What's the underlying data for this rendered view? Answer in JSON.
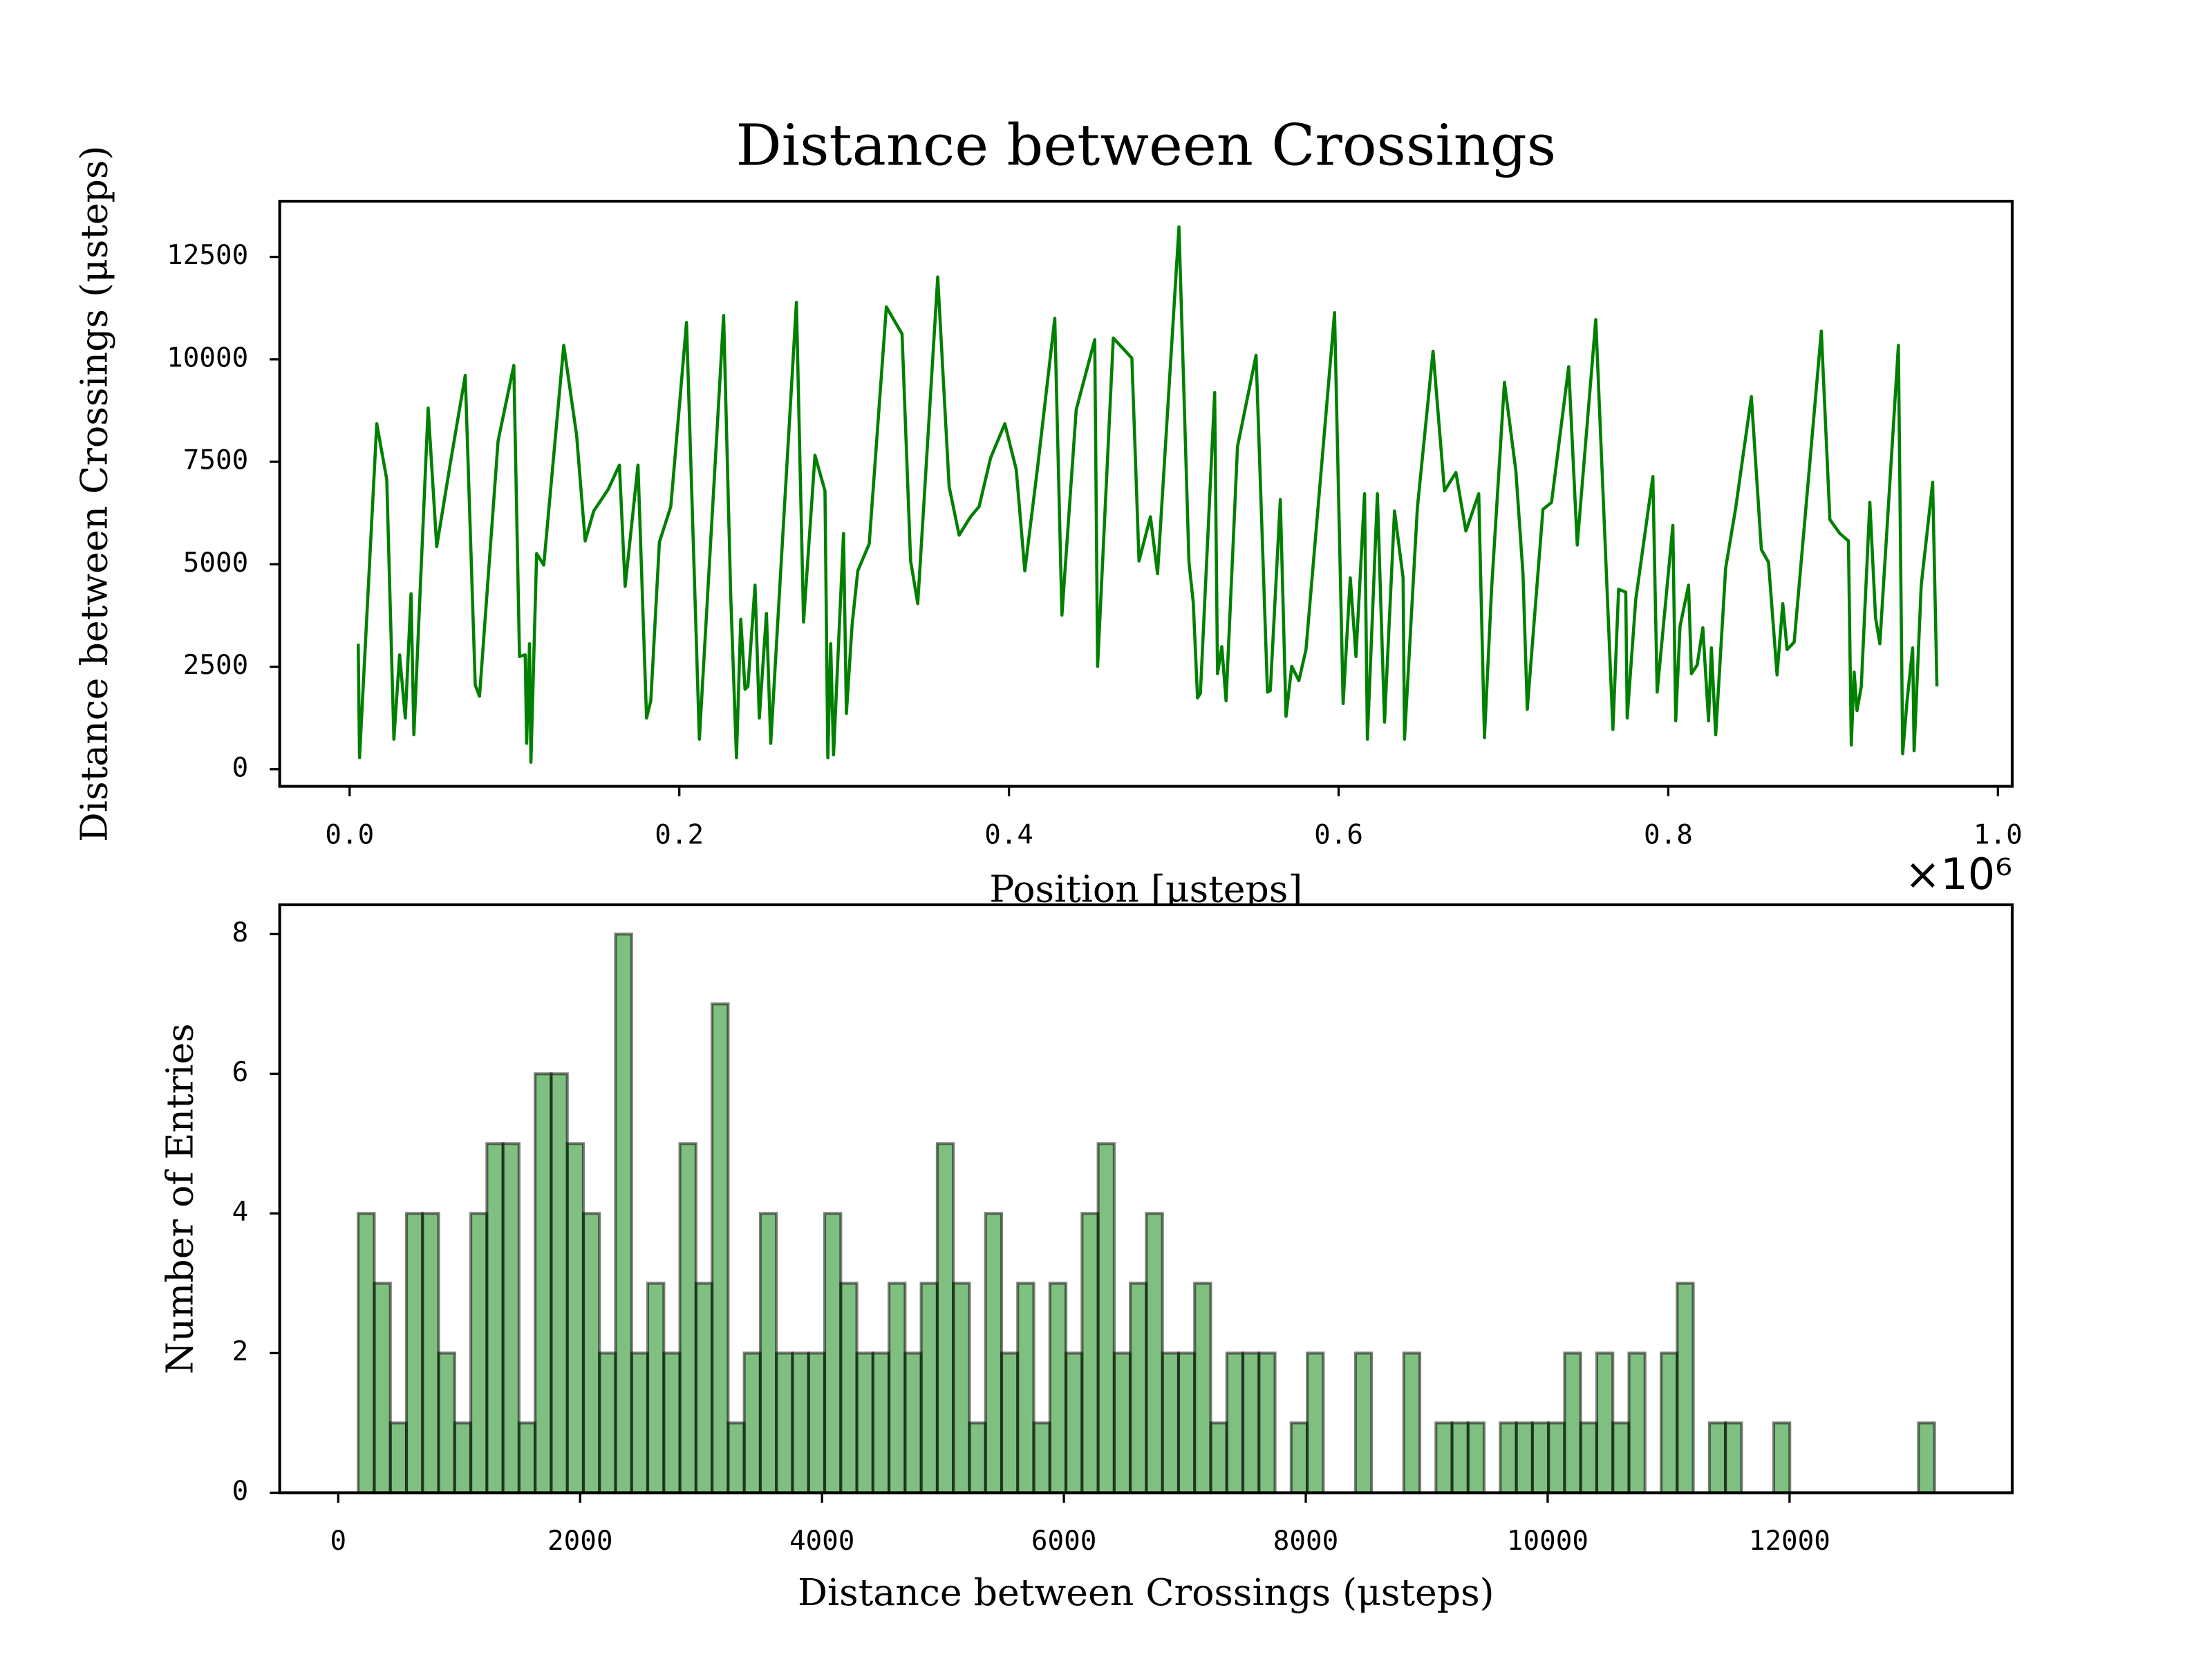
{
  "chart_data": [
    {
      "type": "line",
      "title": "Distance between Crossings",
      "xlabel": "Position [μsteps]",
      "ylabel": "Distance between Crossings (μsteps)",
      "x_offset_label": "×10⁶",
      "color": "#008000",
      "xlim": [
        -42424,
        1008658
      ],
      "ylim": [
        -418,
        13858
      ],
      "xticks": [
        {
          "value": 0,
          "label": "0.0"
        },
        {
          "value": 200000,
          "label": "0.2"
        },
        {
          "value": 400000,
          "label": "0.4"
        },
        {
          "value": 600000,
          "label": "0.6"
        },
        {
          "value": 800000,
          "label": "0.8"
        },
        {
          "value": 1000000,
          "label": "1.0"
        }
      ],
      "yticks": [
        0,
        2500,
        5000,
        7500,
        10000,
        12500
      ],
      "x": [
        5200,
        6000,
        16454,
        22516,
        26846,
        30310,
        33774,
        37238,
        38970,
        47630,
        52826,
        61486,
        70146,
        76208,
        78806,
        90064,
        99590,
        103054,
        106518,
        107384,
        109116,
        109982,
        113446,
        117776,
        129900,
        137694,
        142890,
        148086,
        156746,
        163674,
        167138,
        174932,
        180128,
        182726,
        187922,
        194850,
        204376,
        212170,
        226892,
        231222,
        234686,
        237284,
        239882,
        241614,
        245944,
        248542,
        252872,
        255470,
        261532,
        271058,
        275388,
        282316,
        288378,
        290110,
        291842,
        293574,
        299636,
        301368,
        304832,
        308296,
        315224,
        325616,
        335142,
        340338,
        344668,
        356792,
        363720,
        369782,
        376710,
        381906,
        388834,
        397494,
        404422,
        409618,
        417412,
        427804,
        432134,
        440794,
        452052,
        453784,
        463310,
        474568,
        478898,
        485826,
        490156,
        503146,
        509208,
        511806,
        514404,
        516136,
        524796,
        526528,
        529126,
        531724,
        538652,
        549910,
        556838,
        558570,
        564632,
        568096,
        571560,
        575890,
        580220,
        597540,
        602736,
        607066,
        610530,
        615726,
        617458,
        623520,
        627850,
        633912,
        639108,
        639974,
        647768,
        657294,
        664222,
        671150,
        677212,
        685006,
        688470,
        692800,
        700594,
        707522,
        711852,
        714450,
        723976,
        729172,
        739564,
        744760,
        756018,
        766410,
        769874,
        774204,
        775070,
        780266,
        790658,
        793256,
        802782,
        804514,
        807112,
        812308,
        814040,
        817504,
        820968,
        824432,
        826164,
        828762,
        834824,
        840886,
        850412,
        856474,
        860804,
        866000,
        869464,
        872062,
        876392,
        892846,
        898042,
        904104,
        909300,
        911032,
        912764,
        914496,
        917094,
        922290,
        925754,
        928352,
        939610,
        942208,
        944806,
        948270,
        949136,
        953466,
        960394,
        962992
      ],
      "values": [
        3060,
        280,
        8430,
        7070,
        730,
        2790,
        1250,
        4280,
        840,
        8810,
        5430,
        7560,
        9610,
        2050,
        1780,
        8010,
        9850,
        2750,
        2790,
        630,
        3060,
        170,
        5260,
        4980,
        10340,
        8150,
        5570,
        6300,
        6820,
        7420,
        4460,
        7420,
        1250,
        1670,
        5540,
        6410,
        10900,
        730,
        11070,
        4210,
        280,
        3660,
        1950,
        2020,
        4490,
        1250,
        3800,
        630,
        4840,
        11390,
        3590,
        7660,
        6790,
        280,
        3060,
        350,
        5750,
        1360,
        3520,
        4840,
        5500,
        11280,
        10620,
        5080,
        4040,
        12010,
        6890,
        5710,
        6160,
        6410,
        7590,
        8430,
        7310,
        4840,
        7380,
        11000,
        3760,
        8770,
        10480,
        2510,
        10520,
        10030,
        5080,
        6160,
        4770,
        13230,
        5050,
        4070,
        1740,
        1850,
        9190,
        2330,
        2990,
        1670,
        7870,
        10100,
        1880,
        1920,
        6580,
        1290,
        2510,
        2160,
        2920,
        11140,
        1600,
        4670,
        2750,
        6720,
        730,
        6720,
        1150,
        6300,
        4670,
        730,
        6370,
        10200,
        6790,
        7240,
        5810,
        6720,
        770,
        4390,
        9440,
        7280,
        4770,
        1460,
        6340,
        6510,
        9820,
        5470,
        10970,
        970,
        4390,
        4320,
        1250,
        4140,
        7140,
        1880,
        5950,
        1180,
        3480,
        4490,
        2330,
        2540,
        3450,
        1180,
        2960,
        840,
        4910,
        6370,
        9090,
        5360,
        5050,
        2300,
        4040,
        2920,
        3100,
        10690,
        6090,
        5750,
        5570,
        590,
        2370,
        1430,
        2020,
        6510,
        3690,
        3060,
        10340,
        380,
        1640,
        2960,
        450,
        4490,
        7000,
        2020
      ]
    },
    {
      "type": "histogram",
      "xlabel": "Distance between Crossings (μsteps)",
      "ylabel": "Number of Entries",
      "color": "#008000",
      "edgecolor": "#000000",
      "alpha": 0.5,
      "xlim": [
        -484,
        13841
      ],
      "ylim": [
        0,
        8.42
      ],
      "xticks": [
        0,
        2000,
        4000,
        6000,
        8000,
        10000,
        12000
      ],
      "yticks": [
        0,
        2,
        4,
        6,
        8
      ],
      "bins": [
        165,
        298,
        431,
        564,
        697,
        830,
        963,
        1096,
        1229,
        1362,
        1495,
        1628,
        1761,
        1894,
        2027,
        2160,
        2293,
        2426,
        2559,
        2692,
        2825,
        2958,
        3091,
        3224,
        3357,
        3490,
        3623,
        3756,
        3889,
        4022,
        4155,
        4288,
        4421,
        4554,
        4687,
        4820,
        4953,
        5086,
        5219,
        5352,
        5485,
        5618,
        5751,
        5884,
        6017,
        6150,
        6283,
        6416,
        6549,
        6682,
        6815,
        6948,
        7081,
        7214,
        7347,
        7480,
        7613,
        7746,
        7879,
        8012,
        8145,
        8278,
        8411,
        8544,
        8677,
        8810,
        8943,
        9076,
        9209,
        9342,
        9475,
        9608,
        9741,
        9874,
        10007,
        10140,
        10273,
        10406,
        10539,
        10672,
        10805,
        10938,
        11071,
        11204,
        11337,
        11470,
        11603,
        11736,
        11869,
        12002,
        12135,
        12268,
        12401,
        12534,
        12667,
        12800,
        12933,
        13066,
        13199
      ],
      "counts": [
        4,
        3,
        1,
        4,
        4,
        2,
        1,
        4,
        5,
        5,
        1,
        6,
        6,
        5,
        4,
        2,
        8,
        2,
        3,
        2,
        5,
        3,
        7,
        1,
        2,
        4,
        2,
        2,
        2,
        4,
        3,
        2,
        2,
        3,
        2,
        3,
        5,
        3,
        1,
        4,
        2,
        3,
        1,
        3,
        2,
        4,
        5,
        2,
        3,
        4,
        2,
        2,
        3,
        1,
        2,
        2,
        2,
        0,
        1,
        2,
        0,
        0,
        2,
        0,
        0,
        2,
        0,
        1,
        1,
        1,
        0,
        1,
        1,
        1,
        1,
        2,
        1,
        2,
        1,
        2,
        0,
        2,
        3,
        0,
        1,
        1,
        0,
        0,
        1,
        0,
        0,
        0,
        0,
        0,
        0,
        0,
        0,
        1
      ]
    }
  ]
}
